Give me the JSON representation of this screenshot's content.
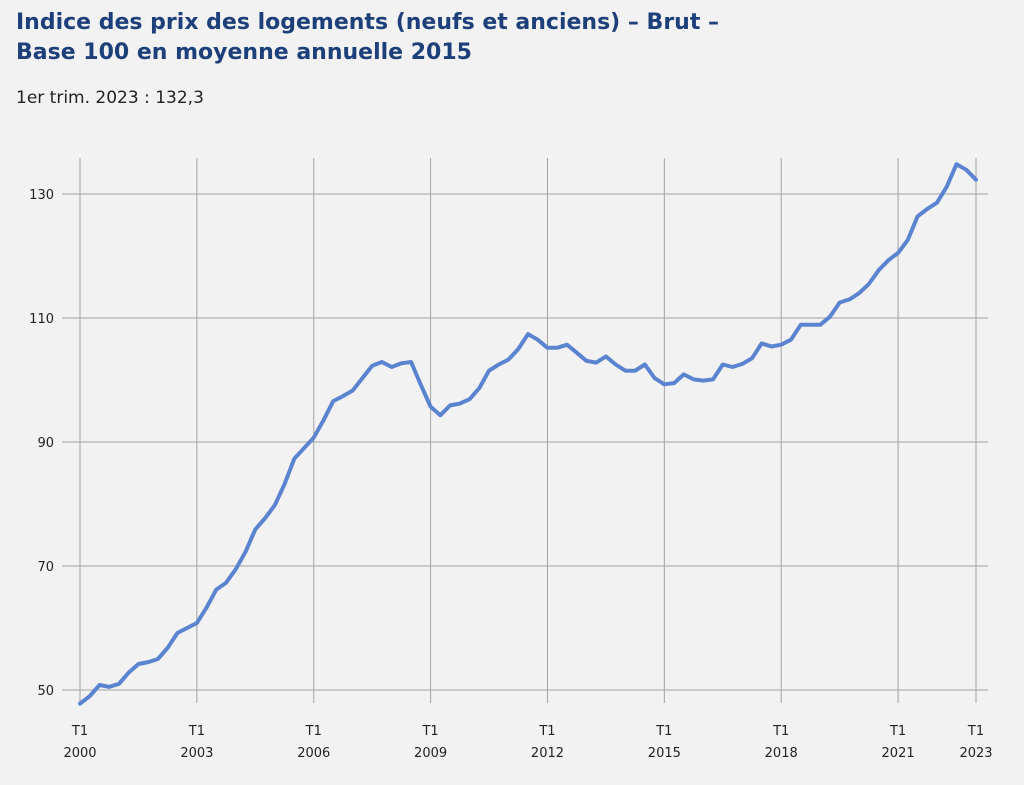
{
  "title": "Indice des prix des logements (neufs et anciens) – Brut – Base 100 en moyenne annuelle 2015",
  "subtitle": "1er trim. 2023 : 132,3",
  "chart_data": {
    "type": "line",
    "title": "Indice des prix des logements (neufs et anciens) – Brut – Base 100 en moyenne annuelle 2015",
    "subtitle": "1er trim. 2023 : 132,3",
    "xlabel": "",
    "ylabel": "",
    "frequency": "quarterly",
    "x_start": "2000-T1",
    "x_end": "2023-T1",
    "ylim": [
      46,
      136
    ],
    "y_ticks": [
      50,
      70,
      90,
      110,
      130
    ],
    "x_ticks": [
      {
        "t1": "T1",
        "year": "2000"
      },
      {
        "t1": "T1",
        "year": "2003"
      },
      {
        "t1": "T1",
        "year": "2006"
      },
      {
        "t1": "T1",
        "year": "2009"
      },
      {
        "t1": "T1",
        "year": "2012"
      },
      {
        "t1": "T1",
        "year": "2015"
      },
      {
        "t1": "T1",
        "year": "2018"
      },
      {
        "t1": "T1",
        "year": "2021"
      },
      {
        "t1": "T1",
        "year": "2023"
      }
    ],
    "grid": true,
    "legend": "none",
    "series": [
      {
        "color": "#5b84d0",
        "values": [
          47.8,
          49.0,
          50.8,
          50.5,
          51.0,
          52.8,
          54.2,
          54.5,
          55.0,
          56.8,
          59.2,
          60.0,
          60.8,
          63.3,
          66.2,
          67.3,
          69.5,
          72.3,
          75.9,
          77.7,
          79.8,
          83.2,
          87.3,
          89.0,
          90.7,
          93.5,
          96.6,
          97.4,
          98.3,
          100.3,
          102.3,
          102.9,
          102.1,
          102.7,
          102.9,
          99.2,
          95.7,
          94.3,
          95.9,
          96.2,
          96.9,
          98.7,
          101.5,
          102.5,
          103.3,
          105.0,
          107.4,
          106.5,
          105.2,
          105.2,
          105.7,
          104.4,
          103.1,
          102.8,
          103.8,
          102.5,
          101.5,
          101.5,
          102.5,
          100.3,
          99.3,
          99.5,
          100.9,
          100.1,
          99.9,
          100.1,
          102.5,
          102.1,
          102.6,
          103.5,
          105.9,
          105.4,
          105.7,
          106.5,
          108.9,
          108.9,
          108.9,
          110.2,
          112.5,
          113.0,
          114.0,
          115.5,
          117.7,
          119.3,
          120.5,
          122.6,
          126.4,
          127.6,
          128.6,
          131.2,
          134.8,
          133.9,
          132.3
        ]
      }
    ]
  }
}
